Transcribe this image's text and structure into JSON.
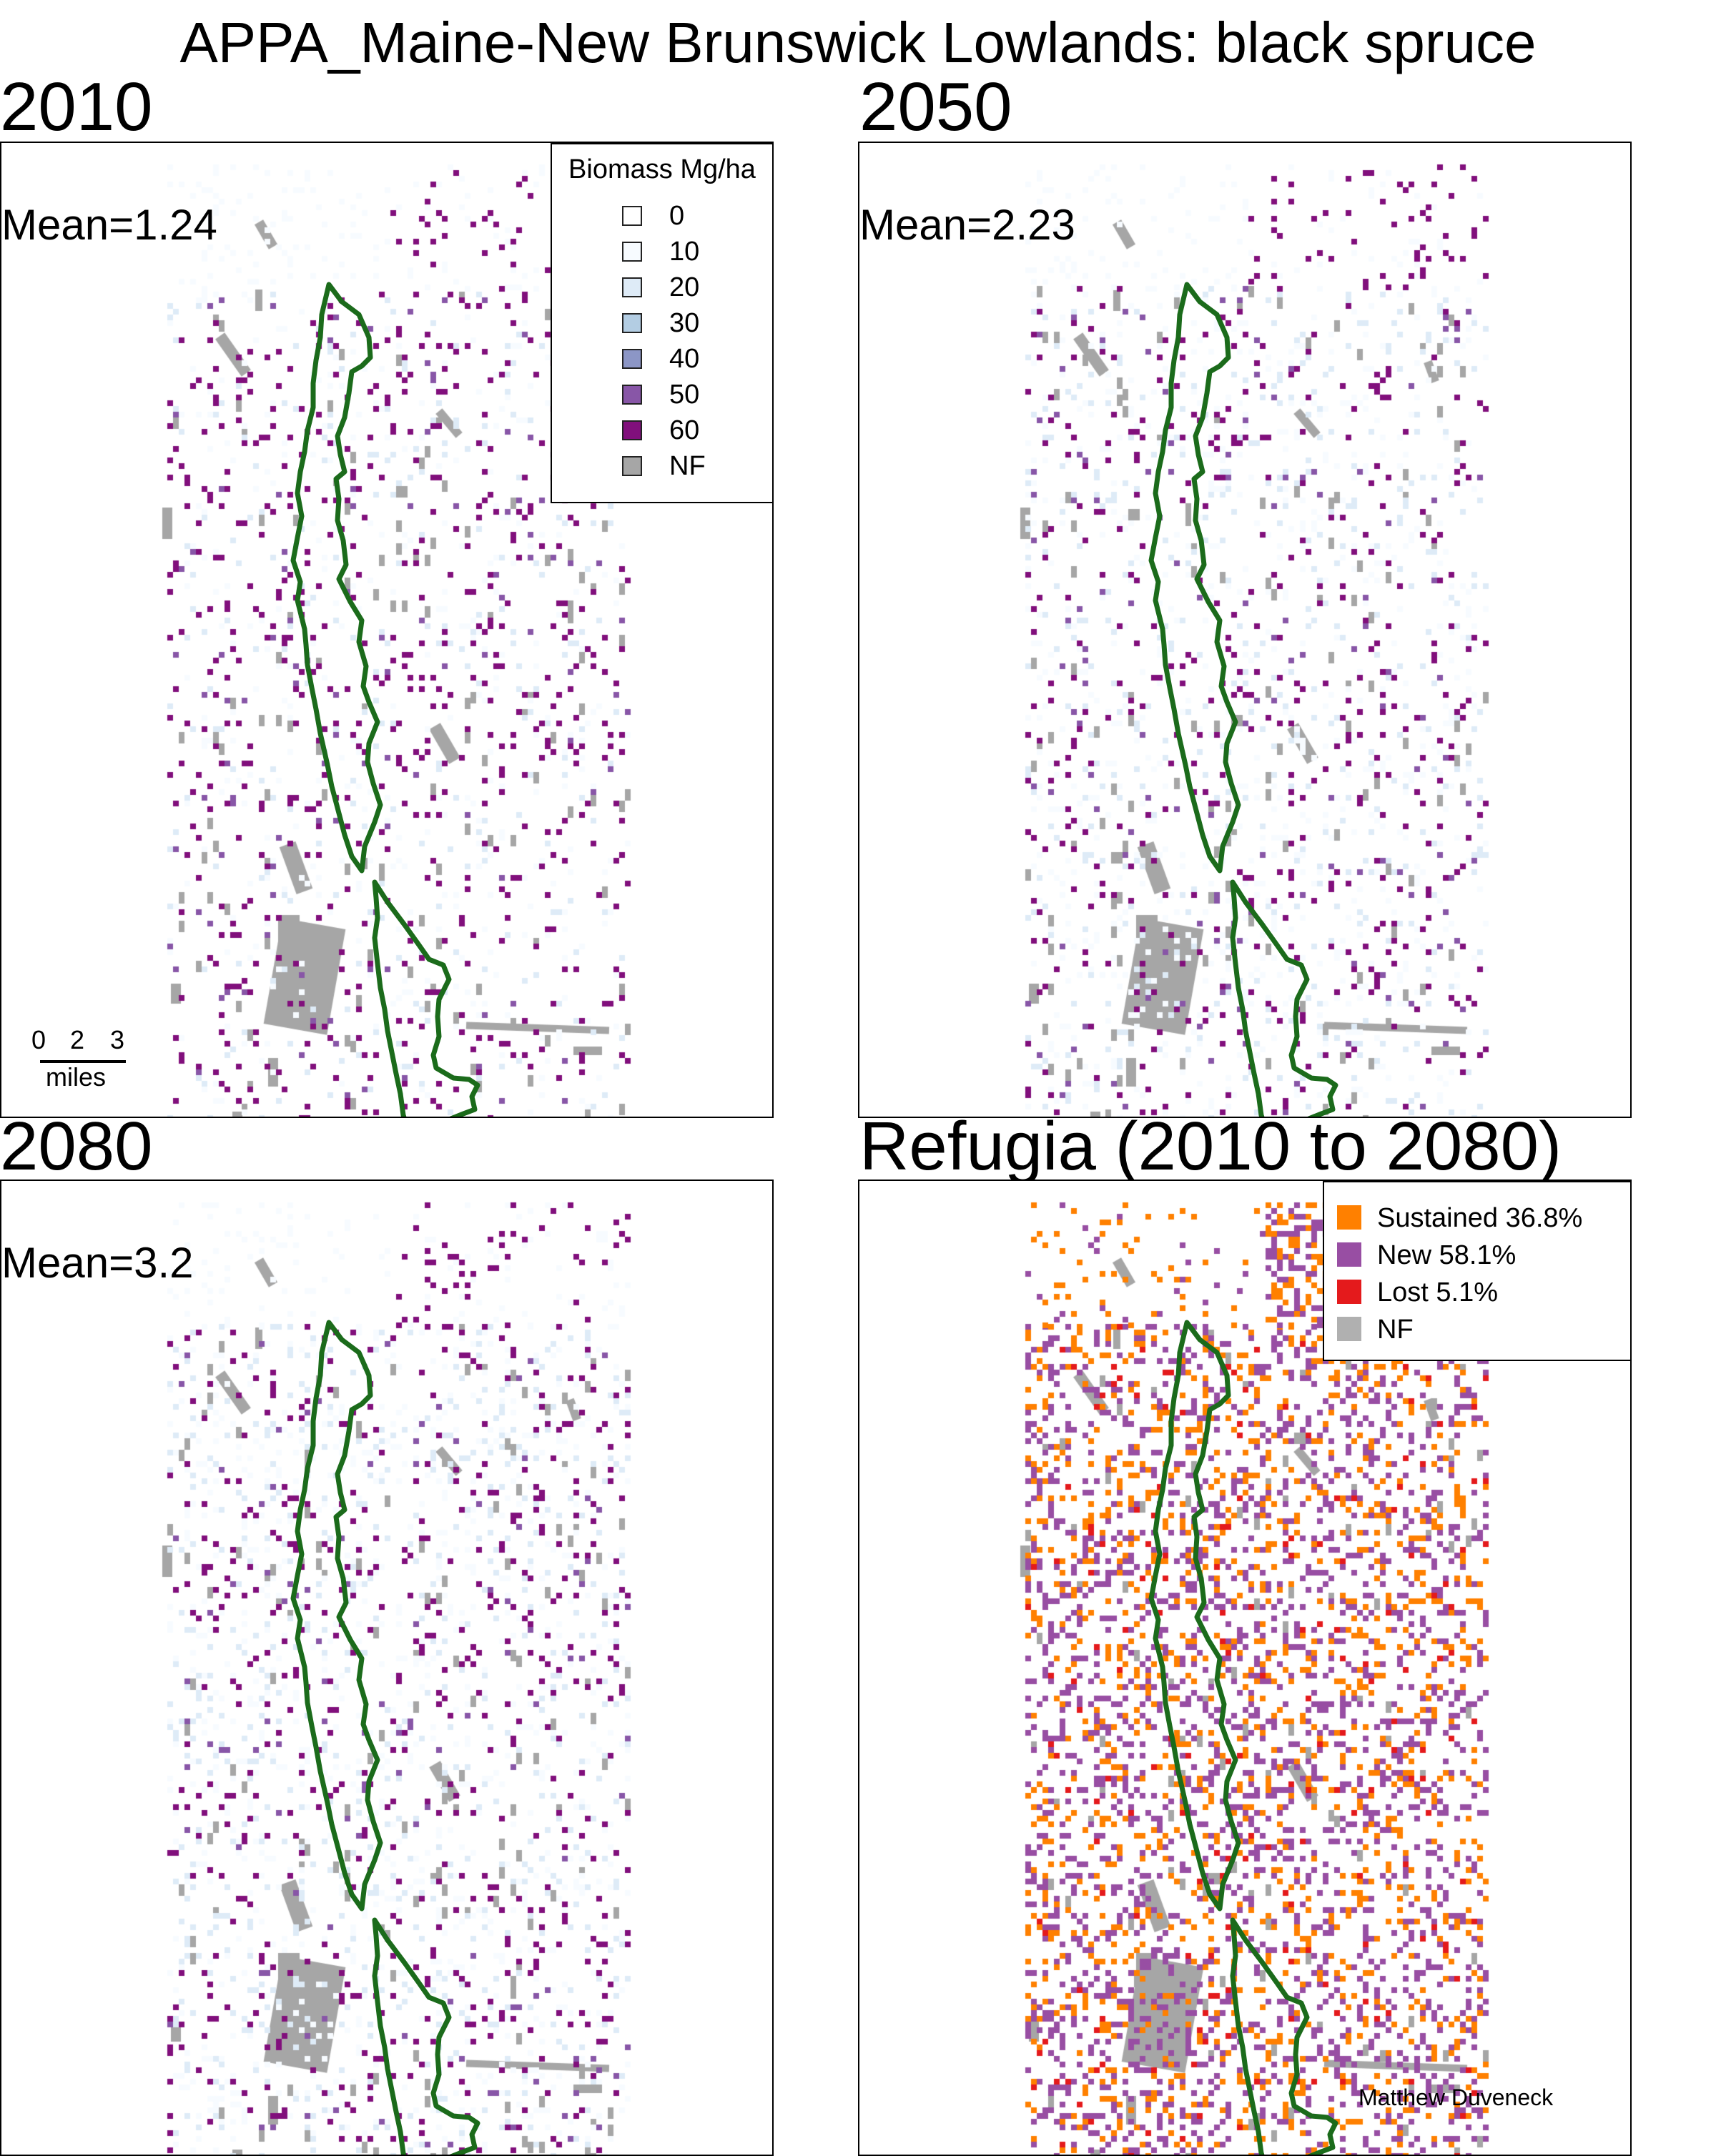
{
  "title": "APPA_Maine-New Brunswick Lowlands: black spruce",
  "panels": [
    {
      "title": "2010",
      "mean": "Mean=1.24"
    },
    {
      "title": "2050",
      "mean": "Mean=2.23"
    },
    {
      "title": "2080",
      "mean": "Mean=3.2"
    },
    {
      "title": "Refugia (2010 to 2080)"
    }
  ],
  "biomass_legend": {
    "title": "Biomass Mg/ha",
    "items": [
      {
        "label": "0",
        "color": "#ffffff"
      },
      {
        "label": "10",
        "color": "#f7fbff"
      },
      {
        "label": "20",
        "color": "#deebf7"
      },
      {
        "label": "30",
        "color": "#b3cde3"
      },
      {
        "label": "40",
        "color": "#8c96c6"
      },
      {
        "label": "50",
        "color": "#8856a7"
      },
      {
        "label": "60",
        "color": "#810f7c"
      },
      {
        "label": "NF",
        "color": "#a6a6a6"
      }
    ]
  },
  "refugia_legend": {
    "items": [
      {
        "label": "Sustained 36.8%",
        "color": "#ff8000"
      },
      {
        "label": "New 58.1%",
        "color": "#984ea3"
      },
      {
        "label": "Lost 5.1%",
        "color": "#e41a1c"
      },
      {
        "label": "NF",
        "color": "#b0b0b0"
      }
    ]
  },
  "scale_bar": {
    "ticks": [
      "0",
      "2",
      "3"
    ],
    "unit": "miles"
  },
  "credit": "Matthew Duveneck",
  "colors": {
    "outline": "#1b6b1b",
    "nonforest": "#a6a6a6",
    "light_biomass": "#dbe9f5",
    "high_biomass": "#7b1f82"
  }
}
